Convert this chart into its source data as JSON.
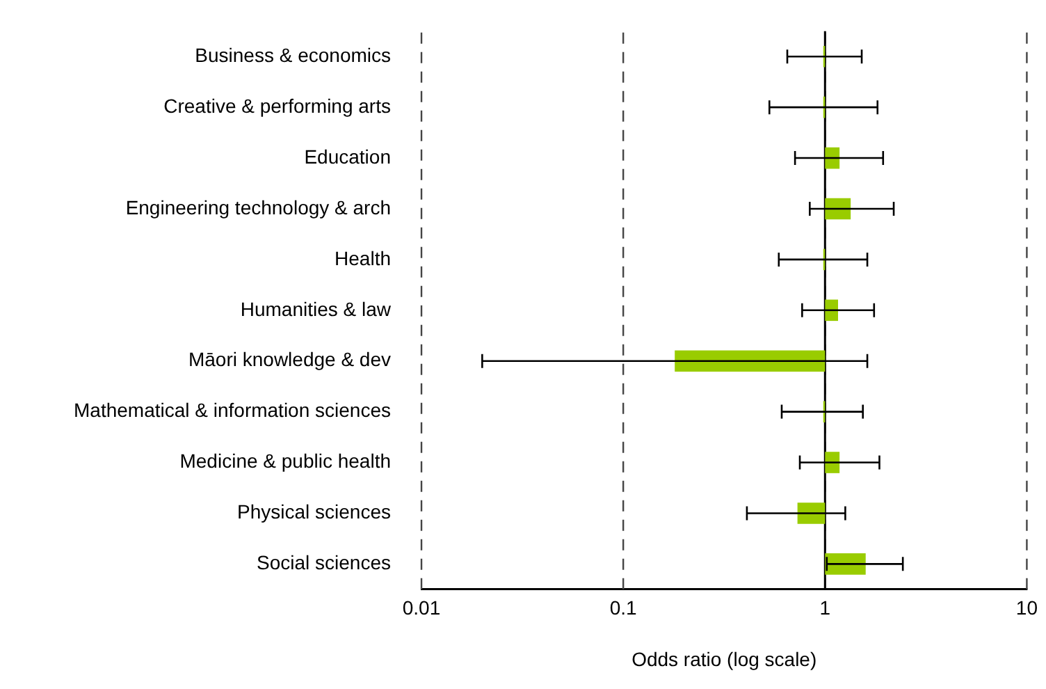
{
  "chart_data": {
    "type": "bar",
    "orientation": "horizontal",
    "xlabel": "Odds ratio (log scale)",
    "log": "x",
    "categories": [
      "Business & economics",
      "Creative & performing arts",
      "Education",
      "Engineering technology & arch",
      "Health",
      "Humanities & law",
      "Māori knowledge & dev",
      "Mathematical & information sciences",
      "Medicine & public health",
      "Physical sciences",
      "Social sciences"
    ],
    "base": [
      1,
      1,
      1,
      1,
      1,
      1,
      1,
      1,
      1,
      1,
      1
    ],
    "values": [
      -0.02,
      -0.02,
      0.18,
      0.34,
      -0.02,
      0.16,
      -0.82,
      -0.02,
      0.18,
      -0.27,
      0.59
    ],
    "errors": [
      [
        0.65,
        1.52
      ],
      [
        0.53,
        1.82
      ],
      [
        0.71,
        1.94
      ],
      [
        0.84,
        2.19
      ],
      [
        0.59,
        1.62
      ],
      [
        0.77,
        1.75
      ],
      [
        0.02,
        1.62
      ],
      [
        0.61,
        1.54
      ],
      [
        0.75,
        1.86
      ],
      [
        0.41,
        1.26
      ],
      [
        1.02,
        2.43
      ]
    ],
    "color": "#99cc00",
    "xlim": [
      0.01,
      10
    ],
    "xticks": [
      0.01,
      0.1,
      1,
      10
    ],
    "grid": "x",
    "ref_lines": [
      {
        "axis": "x",
        "value": 1,
        "color": "#000000",
        "line_style": "solid"
      }
    ]
  }
}
